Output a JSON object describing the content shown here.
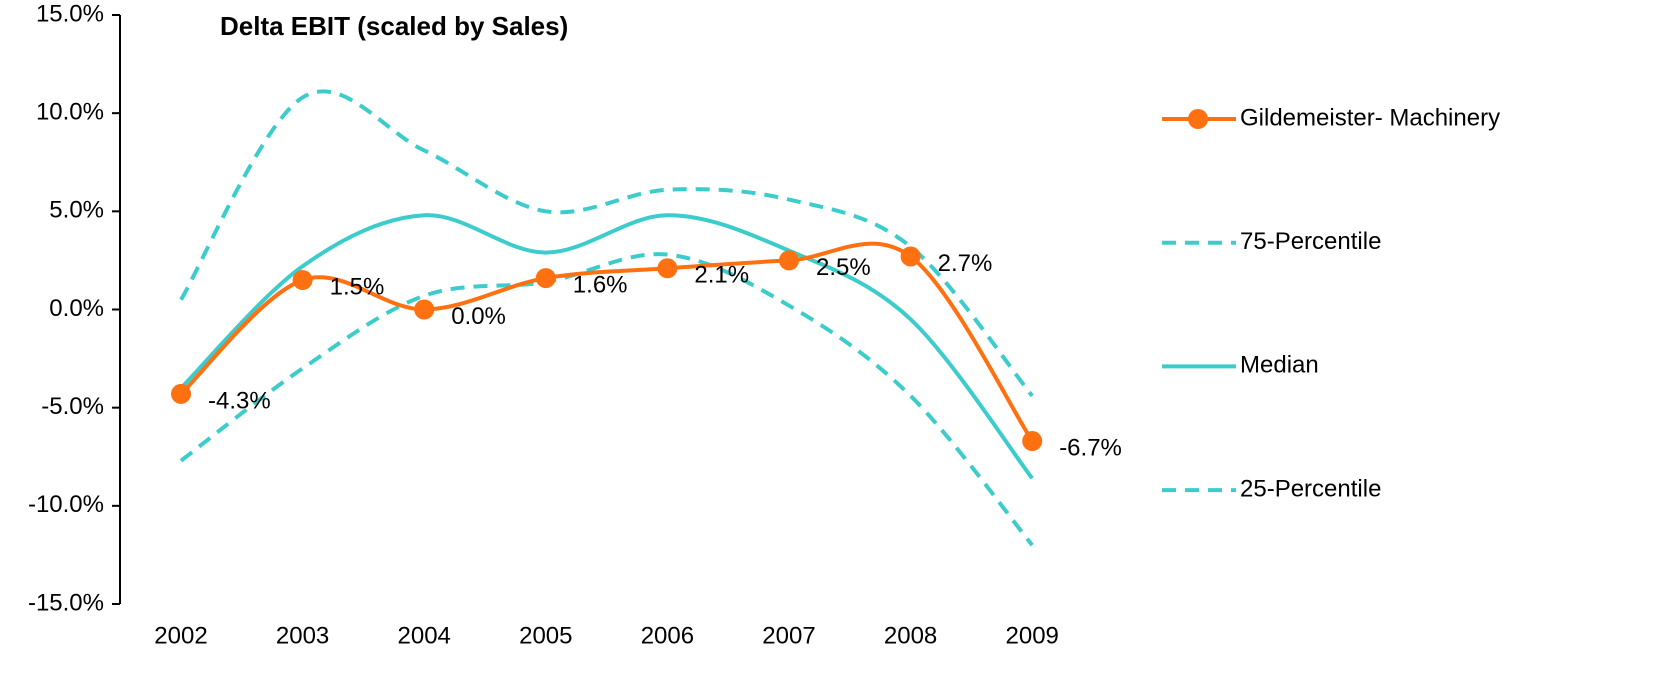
{
  "chart_data": {
    "type": "line",
    "title": "Delta EBIT (scaled by Sales)",
    "categories": [
      "2002",
      "2003",
      "2004",
      "2005",
      "2006",
      "2007",
      "2008",
      "2009"
    ],
    "series": [
      {
        "name": "Gildemeister- Machinery",
        "color": "#ff7010",
        "style": "solid",
        "marker": true,
        "values": [
          -4.3,
          1.5,
          0.0,
          1.6,
          2.1,
          2.5,
          2.7,
          -6.7
        ],
        "value_labels": [
          "-4.3%",
          "1.5%",
          "0.0%",
          "1.6%",
          "2.1%",
          "2.5%",
          "2.7%",
          "-6.7%"
        ]
      },
      {
        "name": "75-Percentile",
        "color": "#3ccccc",
        "style": "dashed",
        "marker": false,
        "values": [
          0.5,
          10.8,
          8.1,
          5.0,
          6.1,
          5.6,
          3.2,
          -4.4
        ]
      },
      {
        "name": "Median",
        "color": "#3ccccc",
        "style": "solid",
        "marker": false,
        "values": [
          -4.0,
          2.2,
          4.8,
          2.9,
          4.8,
          3.0,
          -0.5,
          -8.6
        ]
      },
      {
        "name": "25-Percentile",
        "color": "#3ccccc",
        "style": "dashed",
        "marker": false,
        "values": [
          -7.7,
          -3.0,
          0.7,
          1.4,
          2.8,
          0.2,
          -4.4,
          -12.0
        ]
      }
    ],
    "ylim": [
      -15,
      15
    ],
    "yticks": [
      {
        "value": -15,
        "label": "-15.0%"
      },
      {
        "value": -10,
        "label": "-10.0%"
      },
      {
        "value": -5,
        "label": "-5.0%"
      },
      {
        "value": 0,
        "label": "0.0%"
      },
      {
        "value": 5,
        "label": "5.0%"
      },
      {
        "value": 10,
        "label": "10.0%"
      },
      {
        "value": 15,
        "label": "15.0%"
      }
    ],
    "grid": false,
    "smooth": true,
    "legend": "right",
    "label_color": "#1f3864"
  }
}
